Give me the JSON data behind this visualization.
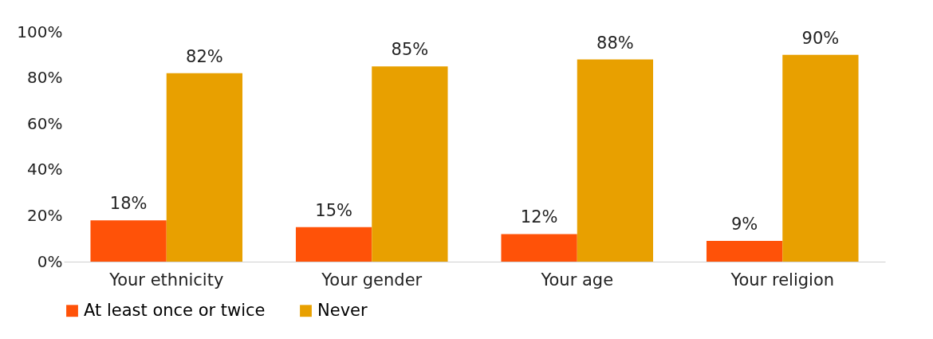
{
  "chart_data": {
    "type": "bar",
    "categories": [
      "Your ethnicity",
      "Your gender",
      "Your age",
      "Your religion"
    ],
    "series": [
      {
        "name": "At least once or twice",
        "color": "#ff5208",
        "values": [
          18,
          15,
          12,
          9
        ],
        "value_labels": [
          "18%",
          "15%",
          "12%",
          "9%"
        ]
      },
      {
        "name": "Never",
        "color": "#e8a000",
        "values": [
          82,
          85,
          88,
          90
        ],
        "value_labels": [
          "82%",
          "85%",
          "88%",
          "90%"
        ]
      }
    ],
    "ylim": [
      0,
      100
    ],
    "yticks": [
      {
        "value": 0,
        "label": "0%"
      },
      {
        "value": 20,
        "label": "20%"
      },
      {
        "value": 40,
        "label": "40%"
      },
      {
        "value": 60,
        "label": "60%"
      },
      {
        "value": 80,
        "label": "80%"
      },
      {
        "value": 100,
        "label": "100%"
      }
    ],
    "grid": false,
    "legend": "bottom"
  }
}
